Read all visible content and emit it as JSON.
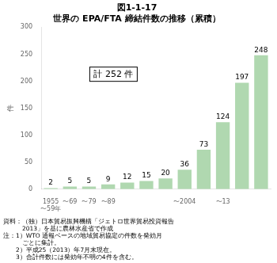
{
  "chart_data": {
    "type": "bar",
    "title": [
      "図1-1-17",
      "世界の EPA/FTA 締結件数の推移（累積）"
    ],
    "subtitle": [
      "資料：（独）日本貿易振興機構「ジェトロ世界貿易投資報告",
      "　　　2013」を基に農林水産省で作成",
      "注：1）WTO 通報ベースの地域貿易協定の件数を発効月",
      "　　　ごとに集計。",
      "　　2）平成25（2013）年7月末現在。",
      "　　3）合計件数には発効年不明の4件を含む。"
    ],
    "ylabel": "件",
    "categories": [
      [
        "1955",
        "〜59年"
      ],
      "〜69",
      "〜79",
      "〜89",
      null,
      null,
      null,
      "〜2004",
      null,
      "〜13",
      null,
      null
    ],
    "values": [
      2,
      5,
      5,
      9,
      12,
      15,
      20,
      36,
      73,
      124,
      197,
      248
    ],
    "color": "#b0d8b0",
    "ylim": [
      0,
      300
    ],
    "yticks": [
      0,
      50,
      100,
      150,
      200,
      250,
      300
    ],
    "annotations": [
      "計 252 件"
    ],
    "data_labels": true,
    "grid": false,
    "legend": false
  }
}
